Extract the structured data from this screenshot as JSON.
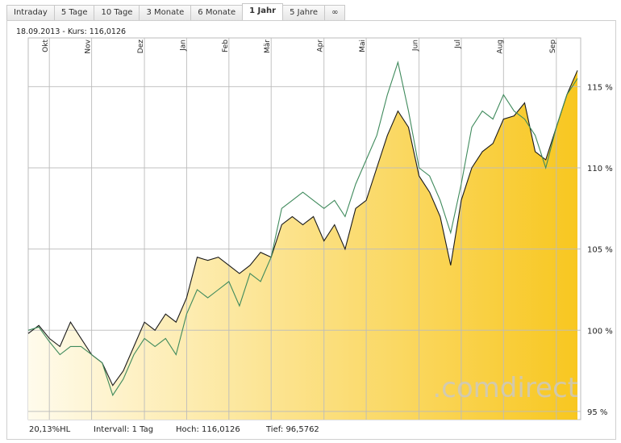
{
  "tabs": {
    "items": [
      "Intraday",
      "5 Tage",
      "10 Tage",
      "3 Monate",
      "6 Monate",
      "1 Jahr",
      "5 Jahre",
      "∞"
    ],
    "active": 5
  },
  "header": "18.09.2013  -  Kurs: 116,0126",
  "footer": [
    "20,13%HL",
    "Intervall: 1 Tag",
    "Hoch: 116,0126",
    "Tief: 96,5762"
  ],
  "watermark": ".comdirect",
  "chart_data": {
    "type": "line",
    "categories": [
      null,
      null,
      "Okt",
      null,
      null,
      null,
      "Nov",
      null,
      null,
      null,
      null,
      "Dez",
      null,
      null,
      null,
      "Jan",
      null,
      null,
      null,
      "Feb",
      null,
      null,
      null,
      "Mär",
      null,
      null,
      null,
      null,
      "Apr",
      null,
      null,
      null,
      "Mai",
      null,
      null,
      null,
      null,
      "Jun",
      null,
      null,
      null,
      "Jul",
      null,
      null,
      null,
      "Aug",
      null,
      null,
      null,
      null,
      "Sep",
      null,
      null
    ],
    "series": [
      {
        "color": "#1a1a1a",
        "area": true,
        "fill_colors": [
          "#fffbec",
          "#f8c720"
        ],
        "values": [
          99.8,
          100.3,
          99.5,
          99.0,
          100.5,
          99.5,
          98.5,
          98.0,
          96.6,
          97.5,
          99.0,
          100.5,
          100.0,
          101.0,
          100.5,
          102.0,
          104.5,
          104.3,
          104.5,
          104.0,
          103.5,
          104.0,
          104.8,
          104.5,
          106.5,
          107.0,
          106.5,
          107.0,
          105.5,
          106.5,
          105.0,
          107.5,
          108.0,
          110.0,
          112.0,
          113.5,
          112.5,
          109.5,
          108.5,
          107.0,
          104.0,
          108.0,
          110.0,
          111.0,
          111.5,
          113.0,
          113.2,
          114.0,
          111.0,
          110.5,
          112.5,
          114.5,
          116.0
        ]
      },
      {
        "color": "#3f8a5c",
        "area": false,
        "values": [
          100.0,
          100.2,
          99.3,
          98.5,
          99.0,
          99.0,
          98.5,
          98.0,
          96.0,
          97.0,
          98.5,
          99.5,
          99.0,
          99.5,
          98.5,
          101.0,
          102.5,
          102.0,
          102.5,
          103.0,
          101.5,
          103.5,
          103.0,
          104.5,
          107.5,
          108.0,
          108.5,
          108.0,
          107.5,
          108.0,
          107.0,
          109.0,
          110.5,
          112.0,
          114.5,
          116.5,
          113.5,
          110.0,
          109.5,
          108.0,
          106.0,
          109.0,
          112.5,
          113.5,
          113.0,
          114.5,
          113.5,
          113.0,
          112.0,
          110.0,
          112.5,
          114.5,
          115.5
        ]
      }
    ],
    "ylim": [
      94.5,
      118
    ],
    "yticks": [
      {
        "value": 95,
        "label": "95 %"
      },
      {
        "value": 100,
        "label": "100 %"
      },
      {
        "value": 105,
        "label": "105 %"
      },
      {
        "value": 110,
        "label": "110 %"
      },
      {
        "value": 115,
        "label": "115 %"
      }
    ],
    "grid": true
  }
}
